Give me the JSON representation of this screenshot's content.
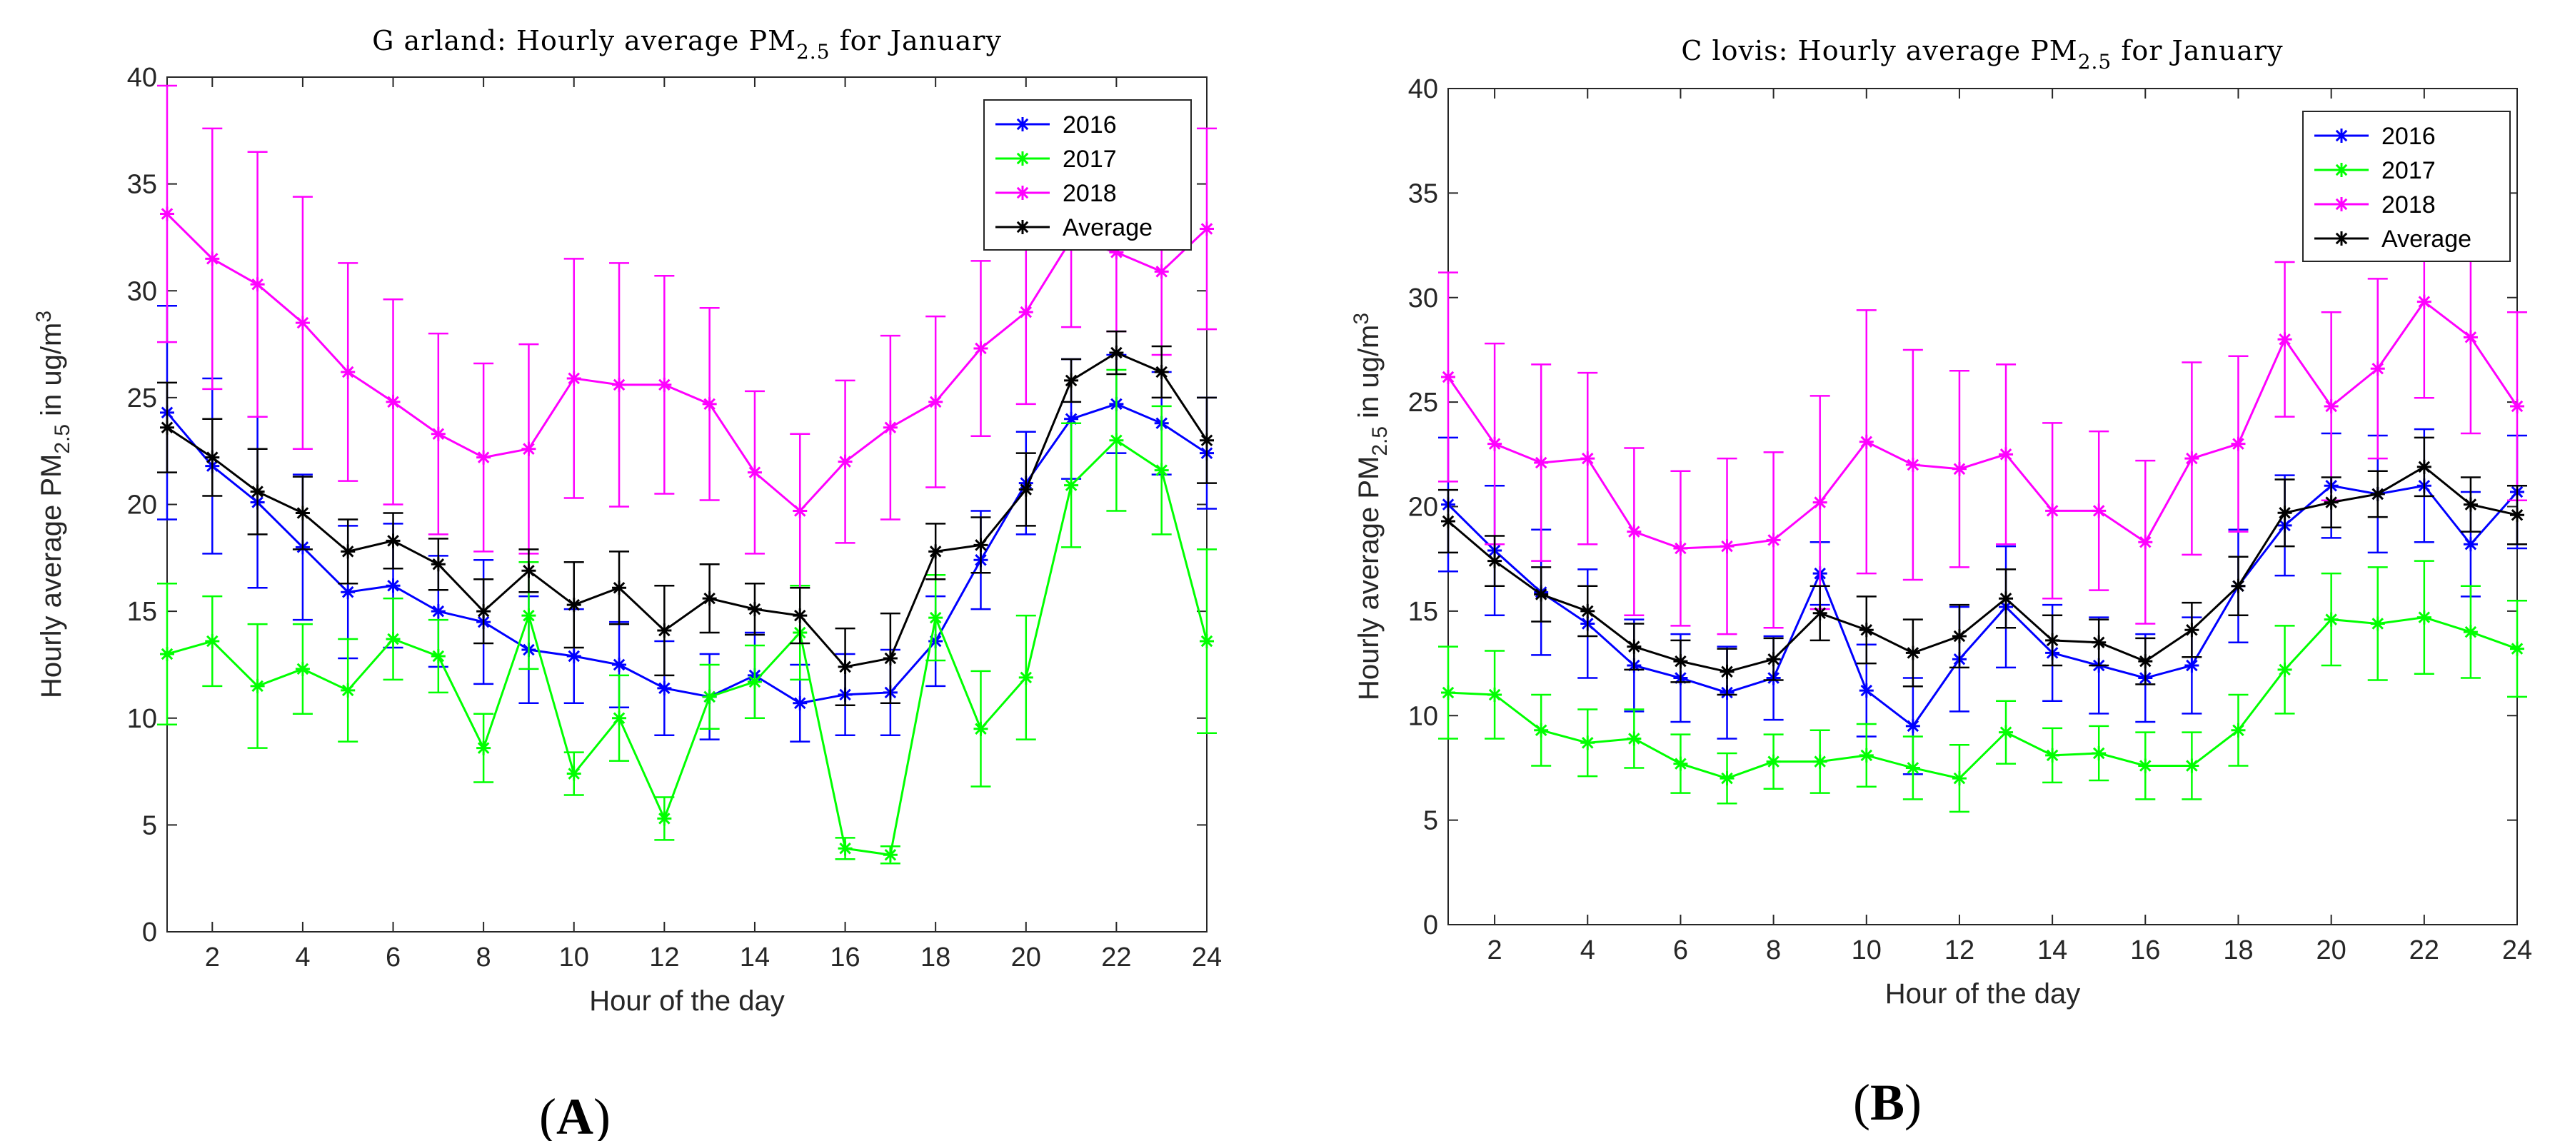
{
  "colors": {
    "2016": "#0000FF",
    "2017": "#00FF00",
    "2018": "#FF00FF",
    "Average": "#000000"
  },
  "chart_data": [
    {
      "type": "line",
      "panel": "A",
      "panel_label_open": "(",
      "panel_label_letter": "A",
      "panel_label_close": ")",
      "title_main": "G arland: Hourly average PM",
      "title_sub": "2.5",
      "title_tail": " for January",
      "xlabel": "Hour of the day",
      "ylabel_main": "Hourly average PM",
      "ylabel_sub": "2.5",
      "ylabel_tail": " in ug/m",
      "ylabel_sup": "3",
      "xlim": [
        1,
        24
      ],
      "ylim": [
        0,
        40
      ],
      "xticks": [
        2,
        4,
        6,
        8,
        10,
        12,
        14,
        16,
        18,
        20,
        22,
        24
      ],
      "yticks": [
        0,
        5,
        10,
        15,
        20,
        25,
        30,
        35,
        40
      ],
      "legend": [
        "2016",
        "2017",
        "2018",
        "Average"
      ],
      "legend_position": "top-right",
      "x": [
        1,
        2,
        3,
        4,
        5,
        6,
        7,
        8,
        9,
        10,
        11,
        12,
        13,
        14,
        15,
        16,
        17,
        18,
        19,
        20,
        21,
        22,
        23,
        24
      ],
      "series": [
        {
          "name": "2016",
          "values": [
            24.3,
            21.8,
            20.1,
            18.0,
            15.9,
            16.2,
            15.0,
            14.5,
            13.2,
            12.9,
            12.5,
            11.4,
            11.0,
            12.0,
            10.7,
            11.1,
            11.2,
            13.6,
            17.4,
            21.0,
            24.0,
            24.7,
            23.8,
            22.4
          ],
          "err": [
            5.0,
            4.1,
            4.0,
            3.4,
            3.1,
            2.9,
            2.6,
            2.9,
            2.5,
            2.2,
            2.0,
            2.2,
            2.0,
            2.0,
            1.8,
            1.9,
            2.0,
            2.1,
            2.3,
            2.4,
            2.8,
            2.3,
            2.4,
            2.6
          ]
        },
        {
          "name": "2017",
          "values": [
            13.0,
            13.6,
            11.5,
            12.3,
            11.3,
            13.7,
            12.9,
            8.6,
            14.8,
            7.4,
            10.0,
            5.3,
            11.0,
            11.7,
            14.0,
            3.9,
            3.6,
            14.7,
            9.5,
            11.9,
            20.9,
            23.0,
            21.6,
            13.6
          ],
          "err": [
            3.3,
            2.1,
            2.9,
            2.1,
            2.4,
            1.9,
            1.7,
            1.6,
            2.5,
            1.0,
            2.0,
            1.0,
            1.5,
            1.7,
            2.2,
            0.5,
            0.4,
            2.0,
            2.7,
            2.9,
            2.9,
            3.3,
            3.0,
            4.3
          ]
        },
        {
          "name": "2018",
          "values": [
            33.6,
            31.5,
            30.3,
            28.5,
            26.2,
            24.8,
            23.3,
            22.2,
            22.6,
            25.9,
            25.6,
            25.6,
            24.7,
            21.5,
            19.7,
            22.0,
            23.6,
            24.8,
            27.3,
            29.0,
            32.4,
            31.8,
            30.9,
            32.9
          ],
          "err": [
            6.0,
            6.1,
            6.2,
            5.9,
            5.1,
            4.8,
            4.7,
            4.4,
            4.9,
            5.6,
            5.7,
            5.1,
            4.5,
            3.8,
            3.6,
            3.8,
            4.3,
            4.0,
            4.1,
            4.3,
            4.1,
            3.7,
            3.9,
            4.7
          ]
        },
        {
          "name": "Average",
          "values": [
            23.6,
            22.2,
            20.6,
            19.6,
            17.8,
            18.3,
            17.2,
            15.0,
            16.9,
            15.3,
            16.1,
            14.1,
            15.6,
            15.1,
            14.8,
            12.4,
            12.8,
            17.8,
            18.1,
            20.7,
            25.8,
            27.1,
            26.2,
            23.0
          ],
          "err": [
            2.1,
            1.8,
            2.0,
            1.7,
            1.5,
            1.3,
            1.2,
            1.5,
            1.0,
            2.0,
            1.7,
            2.1,
            1.6,
            1.2,
            1.3,
            1.8,
            2.1,
            1.3,
            1.3,
            1.7,
            1.0,
            1.0,
            1.2,
            2.0
          ]
        }
      ]
    },
    {
      "type": "line",
      "panel": "B",
      "panel_label_open": "(",
      "panel_label_letter": "B",
      "panel_label_close": ")",
      "title_main": "C lovis: Hourly average PM",
      "title_sub": "2.5",
      "title_tail": " for January",
      "xlabel": "Hour of the day",
      "ylabel_main": "Hourly average PM",
      "ylabel_sub": "2.5",
      "ylabel_tail": " in ug/m",
      "ylabel_sup": "3",
      "xlim": [
        1,
        24
      ],
      "ylim": [
        0,
        40
      ],
      "xticks": [
        2,
        4,
        6,
        8,
        10,
        12,
        14,
        16,
        18,
        20,
        22,
        24
      ],
      "yticks": [
        0,
        5,
        10,
        15,
        20,
        25,
        30,
        35,
        40
      ],
      "legend": [
        "2016",
        "2017",
        "2018",
        "Average"
      ],
      "legend_position": "top-right",
      "x": [
        1,
        2,
        3,
        4,
        5,
        6,
        7,
        8,
        9,
        10,
        11,
        12,
        13,
        14,
        15,
        16,
        17,
        18,
        19,
        20,
        21,
        22,
        23,
        24
      ],
      "series": [
        {
          "name": "2016",
          "values": [
            20.1,
            17.9,
            15.9,
            14.4,
            12.4,
            11.8,
            11.1,
            11.8,
            16.8,
            11.2,
            9.5,
            12.7,
            15.2,
            13.0,
            12.4,
            11.8,
            12.4,
            16.2,
            19.1,
            21.0,
            20.6,
            21.0,
            18.2,
            20.7
          ],
          "err": [
            3.2,
            3.1,
            3.0,
            2.6,
            2.2,
            2.1,
            2.2,
            2.0,
            1.5,
            2.2,
            2.3,
            2.5,
            2.9,
            2.3,
            2.3,
            2.1,
            2.3,
            2.7,
            2.4,
            2.5,
            2.8,
            2.7,
            2.5,
            2.7
          ]
        },
        {
          "name": "2017",
          "values": [
            11.1,
            11.0,
            9.3,
            8.7,
            8.9,
            7.7,
            7.0,
            7.8,
            7.8,
            8.1,
            7.5,
            7.0,
            9.2,
            8.1,
            8.2,
            7.6,
            7.6,
            9.3,
            12.2,
            14.6,
            14.4,
            14.7,
            14.0,
            13.2
          ],
          "err": [
            2.2,
            2.1,
            1.7,
            1.6,
            1.4,
            1.4,
            1.2,
            1.3,
            1.5,
            1.5,
            1.5,
            1.6,
            1.5,
            1.3,
            1.3,
            1.6,
            1.6,
            1.7,
            2.1,
            2.2,
            2.7,
            2.7,
            2.2,
            2.3
          ]
        },
        {
          "name": "2018",
          "values": [
            26.2,
            23.0,
            22.1,
            22.3,
            18.8,
            18.0,
            18.1,
            18.4,
            20.2,
            23.1,
            22.0,
            21.8,
            22.5,
            19.8,
            19.8,
            18.3,
            22.3,
            23.0,
            28.0,
            24.8,
            26.6,
            29.8,
            28.1,
            24.8
          ],
          "err": [
            5.0,
            4.8,
            4.7,
            4.1,
            4.0,
            3.7,
            4.2,
            4.2,
            5.1,
            6.3,
            5.5,
            4.7,
            4.3,
            4.2,
            3.8,
            3.9,
            4.6,
            4.2,
            3.7,
            4.5,
            4.3,
            4.6,
            4.6,
            4.5
          ]
        },
        {
          "name": "Average",
          "values": [
            19.3,
            17.4,
            15.8,
            15.0,
            13.3,
            12.6,
            12.1,
            12.7,
            14.9,
            14.1,
            13.0,
            13.8,
            15.6,
            13.6,
            13.5,
            12.6,
            14.1,
            16.2,
            19.7,
            20.2,
            20.6,
            21.9,
            20.1,
            19.6
          ],
          "err": [
            1.5,
            1.2,
            1.3,
            1.2,
            1.1,
            1.0,
            1.1,
            1.0,
            1.3,
            1.6,
            1.6,
            1.5,
            1.4,
            1.2,
            1.1,
            1.1,
            1.3,
            1.4,
            1.6,
            1.2,
            1.1,
            1.4,
            1.3,
            1.4
          ]
        }
      ]
    }
  ]
}
